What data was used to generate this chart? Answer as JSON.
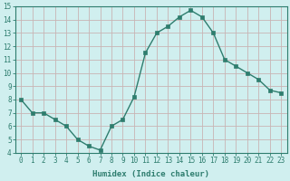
{
  "x": [
    0,
    1,
    2,
    3,
    4,
    5,
    6,
    7,
    8,
    9,
    10,
    11,
    12,
    13,
    14,
    15,
    16,
    17,
    18,
    19,
    20,
    21,
    22,
    23
  ],
  "y": [
    8.0,
    7.0,
    7.0,
    6.5,
    6.0,
    5.0,
    4.5,
    4.2,
    6.0,
    6.5,
    8.2,
    11.5,
    13.0,
    13.5,
    14.2,
    14.7,
    14.2,
    13.0,
    11.0,
    10.5,
    10.0,
    9.5,
    8.7,
    8.5
  ],
  "line_color": "#2e7d6e",
  "marker_color": "#2e7d6e",
  "bg_color": "#d0efef",
  "grid_color": "#c8b4b4",
  "xlabel": "Humidex (Indice chaleur)",
  "xlim": [
    -0.5,
    23.5
  ],
  "ylim": [
    4,
    15
  ],
  "yticks": [
    4,
    5,
    6,
    7,
    8,
    9,
    10,
    11,
    12,
    13,
    14,
    15
  ],
  "xticks": [
    0,
    1,
    2,
    3,
    4,
    5,
    6,
    7,
    8,
    9,
    10,
    11,
    12,
    13,
    14,
    15,
    16,
    17,
    18,
    19,
    20,
    21,
    22,
    23
  ],
  "xtick_labels": [
    "0",
    "1",
    "2",
    "3",
    "4",
    "5",
    "6",
    "7",
    "8",
    "9",
    "10",
    "11",
    "12",
    "13",
    "14",
    "15",
    "16",
    "17",
    "18",
    "19",
    "20",
    "21",
    "22",
    "23"
  ],
  "label_color": "#2e7d6e",
  "tick_color": "#2e7d6e",
  "linewidth": 1.0,
  "markersize": 2.5,
  "xlabel_fontsize": 6.5,
  "tick_fontsize": 5.5
}
